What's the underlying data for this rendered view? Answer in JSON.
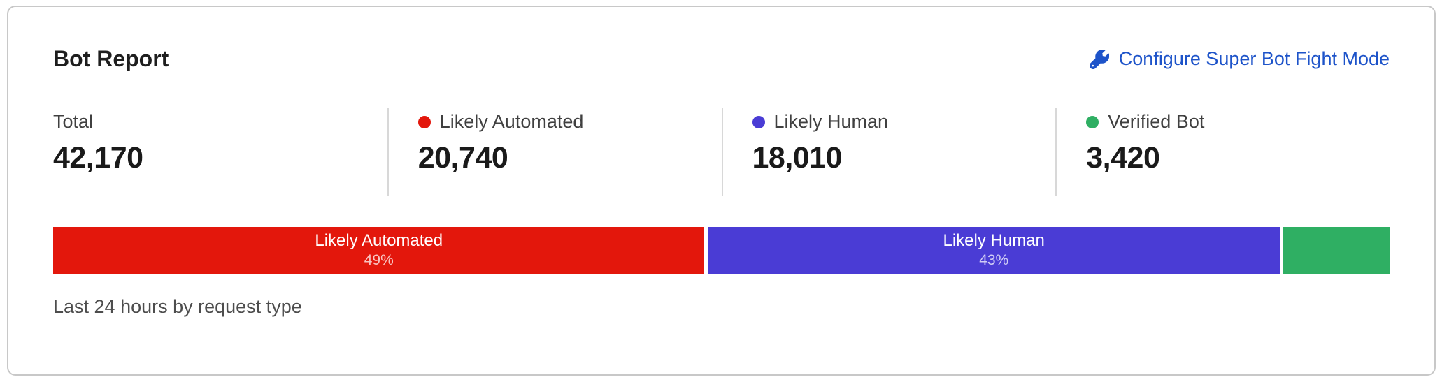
{
  "card": {
    "title": "Bot Report",
    "caption": "Last 24 hours by request type",
    "configure_link": {
      "label": "Configure Super Bot Fight Mode",
      "icon": "wrench-icon"
    }
  },
  "colors": {
    "likely_automated_red": "#E3170C",
    "likely_human_purple": "#4A3CD5",
    "verified_bot_green": "#2FAF63",
    "link_blue": "#1D53C9"
  },
  "stats": {
    "items": [
      {
        "label": "Total",
        "value": "42,170"
      },
      {
        "label": "Likely Automated",
        "value": "20,740",
        "dot_color": "#E3170C"
      },
      {
        "label": "Likely Human",
        "value": "18,010",
        "dot_color": "#4A3CD5"
      },
      {
        "label": "Verified Bot",
        "value": "3,420",
        "dot_color": "#2FAF63"
      }
    ]
  },
  "chart_data": {
    "type": "bar",
    "variant": "horizontal-stacked-percentage",
    "title": "Bot Report",
    "caption": "Last 24 hours by request type",
    "total": 42170,
    "legend_position": "above-as-stat-columns",
    "segments": [
      {
        "name": "Likely Automated",
        "value": 20740,
        "percent": 49,
        "percent_label": "49%",
        "color": "#E3170C",
        "show_label": true
      },
      {
        "name": "Likely Human",
        "value": 18010,
        "percent": 43,
        "percent_label": "43%",
        "color": "#4A3CD5",
        "show_label": true
      },
      {
        "name": "Verified Bot",
        "value": 3420,
        "percent": 8,
        "percent_label": "",
        "color": "#2FAF63",
        "show_label": false
      }
    ]
  }
}
